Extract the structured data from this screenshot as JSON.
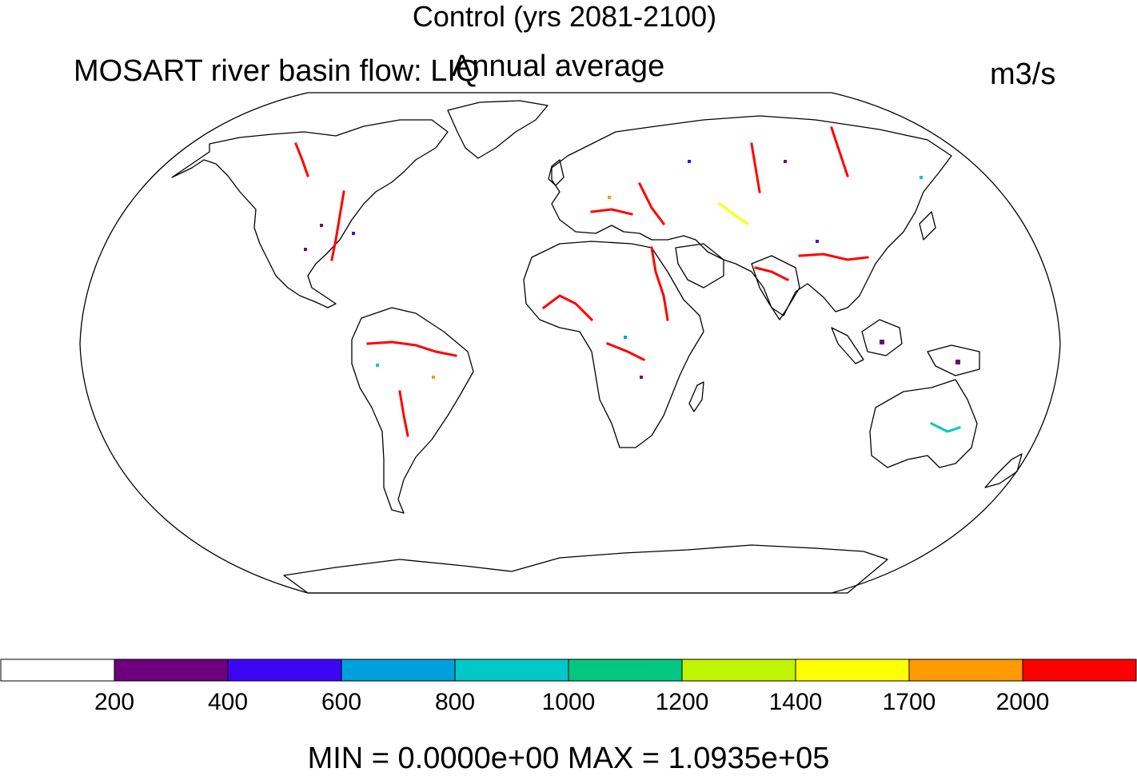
{
  "title": "Control (yrs 2081-2100)",
  "subtitle_left": "MOSART river basin flow: LIQ",
  "subtitle_center": "Annual average",
  "units": "m3/s",
  "projection": "Robinson",
  "colorbar": {
    "colors": [
      "#ffffff",
      "#6e007d",
      "#3c06f5",
      "#00a0dc",
      "#00c8c8",
      "#00c882",
      "#bef500",
      "#ffff00",
      "#ff9a00",
      "#ff0000"
    ],
    "levels": [
      "200",
      "400",
      "600",
      "800",
      "1000",
      "1200",
      "1400",
      "1700",
      "2000"
    ]
  },
  "minmax": "MIN = 0.0000e+00 MAX = 1.0935e+05"
}
